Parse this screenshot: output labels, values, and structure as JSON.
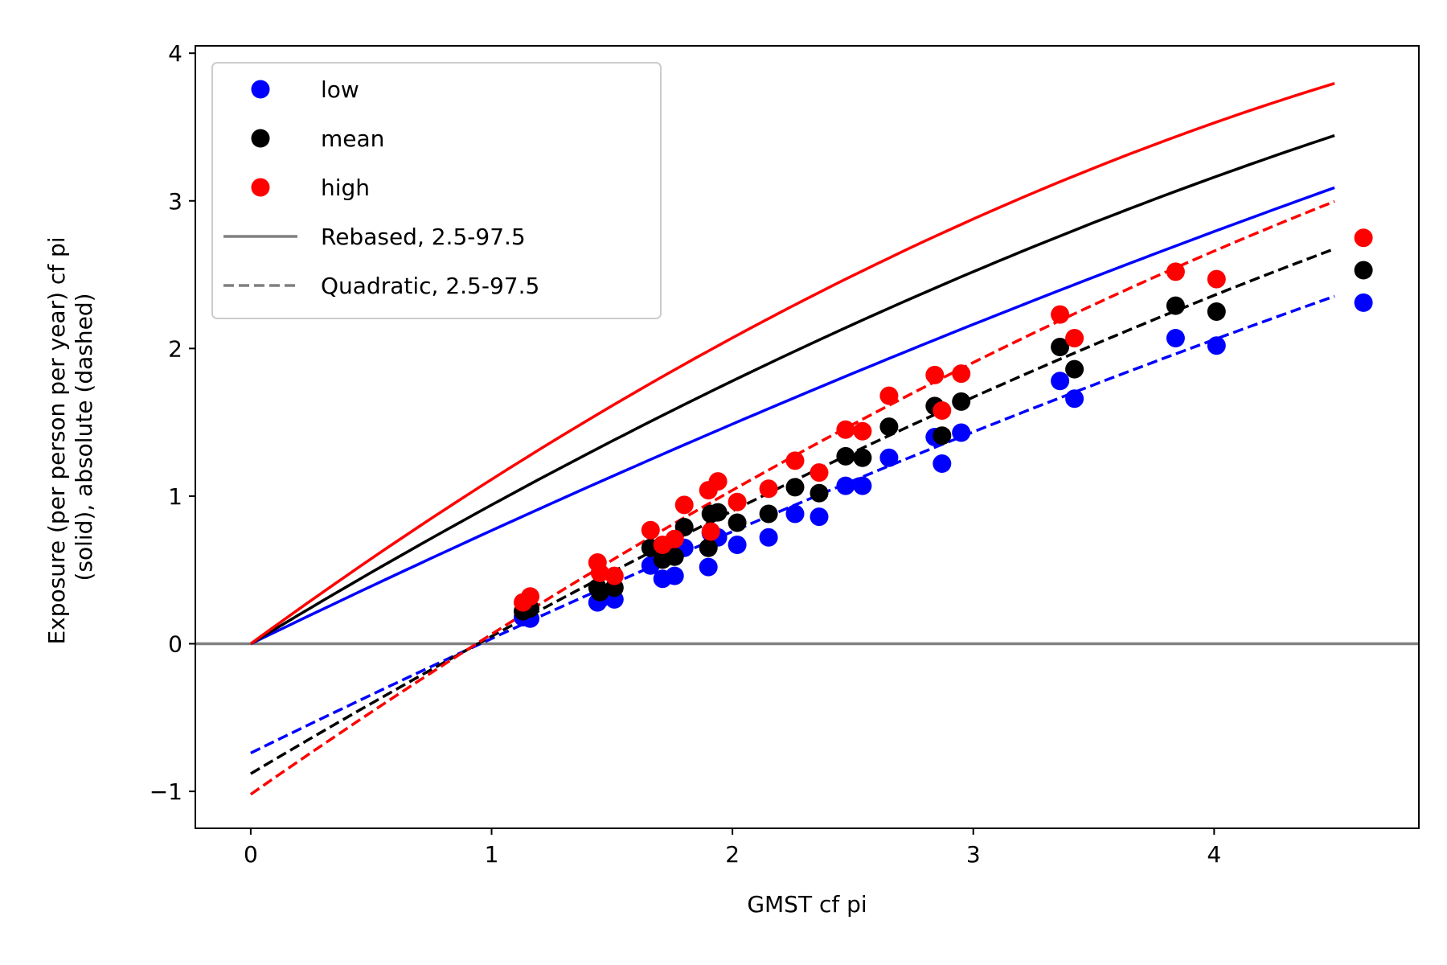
{
  "chart_data": {
    "type": "scatter",
    "xlabel": "GMST cf pi",
    "ylabel_lines": [
      "Exposure (per person per year) cf pi",
      "(solid), absolute (dashed)"
    ],
    "xlim": [
      -0.23,
      4.85
    ],
    "ylim": [
      -1.25,
      4.05
    ],
    "x_ticks": [
      0,
      1,
      2,
      3,
      4
    ],
    "y_ticks": [
      -1,
      0,
      1,
      2,
      3,
      4
    ],
    "x_tick_labels": [
      "0",
      "1",
      "2",
      "3",
      "4"
    ],
    "y_tick_labels": [
      "−1",
      "0",
      "1",
      "2",
      "3",
      "4"
    ],
    "grid": false,
    "legend_position": "top-left",
    "zero_line_color": "#808080",
    "legend": [
      {
        "label": "low",
        "kind": "marker",
        "color": "#0000ff"
      },
      {
        "label": "mean",
        "kind": "marker",
        "color": "#000000"
      },
      {
        "label": "high",
        "kind": "marker",
        "color": "#ff0000"
      },
      {
        "label": "Rebased, 2.5-97.5",
        "kind": "solid",
        "color": "#808080"
      },
      {
        "label": "Quadratic, 2.5-97.5",
        "kind": "dashed",
        "color": "#808080"
      }
    ],
    "scatter_x": [
      1.13,
      1.16,
      1.44,
      1.45,
      1.51,
      1.66,
      1.71,
      1.76,
      1.8,
      1.9,
      1.91,
      1.94,
      2.02,
      2.15,
      2.26,
      2.36,
      2.47,
      2.54,
      2.65,
      2.84,
      2.87,
      2.95,
      3.36,
      3.42,
      3.84,
      4.01,
      4.62
    ],
    "series": [
      {
        "name": "low",
        "color": "#0000ff",
        "points_y": [
          0.18,
          0.17,
          0.28,
          0.3,
          0.3,
          0.53,
          0.44,
          0.46,
          0.65,
          0.52,
          0.75,
          0.72,
          0.67,
          0.72,
          0.88,
          0.86,
          1.07,
          1.07,
          1.26,
          1.4,
          1.22,
          1.43,
          1.78,
          1.66,
          2.07,
          2.02,
          2.31
        ],
        "rebased_curve": {
          "a": 0.79,
          "b": -0.023
        },
        "quadratic_curve": {
          "c0": -0.74,
          "c1": 0.8,
          "c2": -0.025
        }
      },
      {
        "name": "mean",
        "color": "#000000",
        "points_y": [
          0.22,
          0.24,
          0.38,
          0.35,
          0.38,
          0.65,
          0.57,
          0.59,
          0.79,
          0.65,
          0.88,
          0.89,
          0.82,
          0.88,
          1.06,
          1.02,
          1.27,
          1.26,
          1.47,
          1.61,
          1.41,
          1.64,
          2.01,
          1.86,
          2.29,
          2.25,
          2.53
        ],
        "rebased_curve": {
          "a": 0.99,
          "b": -0.05
        },
        "quadratic_curve": {
          "c0": -0.88,
          "c1": 0.97,
          "c2": -0.04
        }
      },
      {
        "name": "high",
        "color": "#ff0000",
        "points_y": [
          0.28,
          0.32,
          0.55,
          0.48,
          0.46,
          0.77,
          0.67,
          0.71,
          0.94,
          1.04,
          0.76,
          1.1,
          0.96,
          1.05,
          1.24,
          1.16,
          1.45,
          1.44,
          1.68,
          1.82,
          1.58,
          1.83,
          2.23,
          2.07,
          2.52,
          2.47,
          2.75
        ],
        "rebased_curve": {
          "a": 1.19,
          "b": -0.077
        },
        "quadratic_curve": {
          "c0": -1.02,
          "c1": 1.14,
          "c2": -0.055
        }
      }
    ],
    "curve_x_range": [
      0,
      4.5
    ]
  }
}
